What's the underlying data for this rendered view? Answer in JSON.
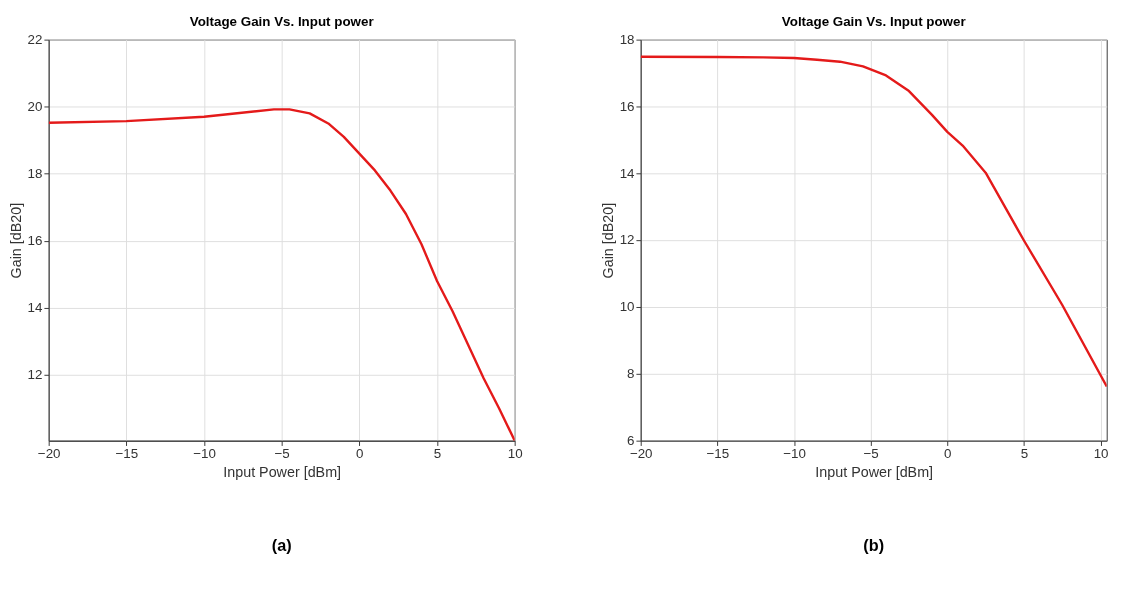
{
  "chart_data": [
    {
      "type": "line",
      "title": "Voltage Gain Vs. Input power",
      "xlabel": "Input Power [dBm]",
      "ylabel": "Gain [dB20]",
      "x": [
        -20,
        -15,
        -10,
        -5.5,
        -4.5,
        -3.2,
        -2,
        -1,
        0,
        1,
        2,
        3,
        4,
        5,
        6,
        7,
        8,
        9,
        10
      ],
      "series": [
        {
          "color": "#e41a1a",
          "values": [
            19.52,
            19.57,
            19.7,
            19.92,
            19.92,
            19.8,
            19.5,
            19.1,
            18.6,
            18.1,
            17.5,
            16.8,
            15.9,
            14.8,
            13.9,
            12.9,
            11.9,
            11.0,
            10.04
          ]
        }
      ],
      "xlim": [
        -20,
        10
      ],
      "ylim": [
        10.04,
        22
      ],
      "xticks": [
        -20,
        -15,
        -10,
        -5,
        0,
        5,
        10
      ],
      "yticks": [
        12,
        14,
        16,
        18,
        20,
        22
      ],
      "grid": true,
      "line_style": "solid",
      "marker": "none",
      "annotations": [
        "(a)"
      ]
    },
    {
      "type": "line",
      "title": "Voltage Gain Vs. Input power",
      "xlabel": "Input Power [dBm]",
      "ylabel": "Gain [dB20]",
      "x": [
        -20,
        -15,
        -12,
        -10,
        -8.5,
        -7,
        -5.5,
        -4,
        -2.5,
        -1,
        0,
        1,
        2.5,
        4,
        5,
        7.5,
        10.4
      ],
      "series": [
        {
          "color": "#e41a1a",
          "values": [
            17.49,
            17.48,
            17.47,
            17.45,
            17.4,
            17.34,
            17.2,
            16.93,
            16.46,
            15.75,
            15.24,
            14.83,
            14.02,
            12.8,
            11.99,
            10.06,
            7.62
          ]
        }
      ],
      "xlim": [
        -20,
        10.4
      ],
      "ylim": [
        6,
        18
      ],
      "xticks": [
        -20,
        -15,
        -10,
        -5,
        0,
        5,
        10
      ],
      "yticks": [
        6,
        8,
        10,
        12,
        14,
        16,
        18
      ],
      "grid": true,
      "line_style": "solid",
      "marker": "none",
      "annotations": [
        "(b)"
      ]
    }
  ]
}
